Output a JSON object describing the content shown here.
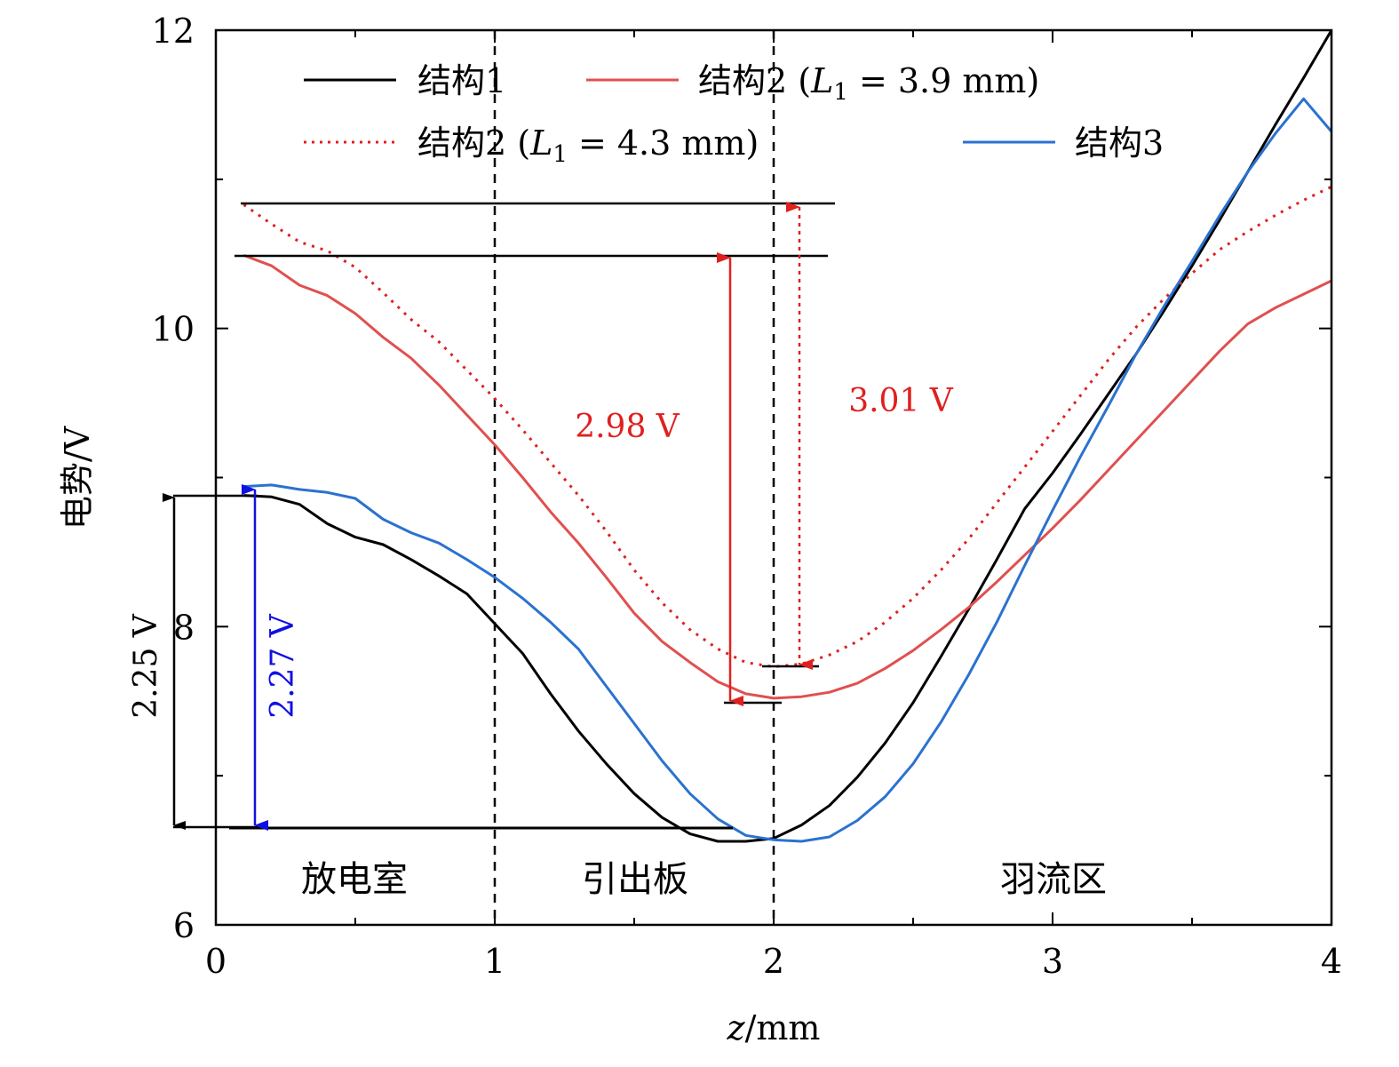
{
  "chart_data": {
    "type": "line",
    "xlabel": "z/mm",
    "ylabel": "电势/V",
    "xlim": [
      0,
      4
    ],
    "ylim": [
      6,
      12
    ],
    "xticks": [
      "0",
      "1",
      "2",
      "3",
      "4"
    ],
    "yticks": [
      "6",
      "8",
      "10",
      "12"
    ],
    "legend_position": "top",
    "series": [
      {
        "name": "结构1",
        "color": "#000000",
        "style": "solid",
        "points": [
          [
            0.1,
            8.88
          ],
          [
            0.2,
            8.87
          ],
          [
            0.3,
            8.82
          ],
          [
            0.4,
            8.69
          ],
          [
            0.5,
            8.6
          ],
          [
            0.6,
            8.55
          ],
          [
            0.7,
            8.45
          ],
          [
            0.8,
            8.34
          ],
          [
            0.9,
            8.22
          ],
          [
            1.0,
            8.02
          ],
          [
            1.1,
            7.82
          ],
          [
            1.2,
            7.55
          ],
          [
            1.3,
            7.3
          ],
          [
            1.4,
            7.08
          ],
          [
            1.5,
            6.88
          ],
          [
            1.6,
            6.72
          ],
          [
            1.7,
            6.61
          ],
          [
            1.8,
            6.56
          ],
          [
            1.9,
            6.56
          ],
          [
            2.0,
            6.58
          ],
          [
            2.1,
            6.67
          ],
          [
            2.2,
            6.8
          ],
          [
            2.3,
            6.99
          ],
          [
            2.4,
            7.22
          ],
          [
            2.5,
            7.49
          ],
          [
            2.6,
            7.8
          ],
          [
            2.7,
            8.12
          ],
          [
            2.8,
            8.45
          ],
          [
            2.9,
            8.79
          ],
          [
            3.0,
            9.03
          ],
          [
            3.1,
            9.29
          ],
          [
            3.2,
            9.56
          ],
          [
            3.3,
            9.83
          ],
          [
            3.4,
            10.12
          ],
          [
            3.5,
            10.42
          ],
          [
            3.6,
            10.73
          ],
          [
            3.7,
            11.05
          ],
          [
            3.8,
            11.37
          ],
          [
            3.9,
            11.68
          ],
          [
            4.0,
            12.0
          ]
        ]
      },
      {
        "name": "结构2 (L₁ = 3.9 mm)",
        "color": "#e05050",
        "style": "solid",
        "points": [
          [
            0.1,
            10.49
          ],
          [
            0.2,
            10.42
          ],
          [
            0.3,
            10.29
          ],
          [
            0.4,
            10.22
          ],
          [
            0.5,
            10.1
          ],
          [
            0.6,
            9.94
          ],
          [
            0.7,
            9.8
          ],
          [
            0.8,
            9.62
          ],
          [
            0.9,
            9.42
          ],
          [
            1.0,
            9.22
          ],
          [
            1.1,
            9.0
          ],
          [
            1.2,
            8.77
          ],
          [
            1.3,
            8.56
          ],
          [
            1.4,
            8.33
          ],
          [
            1.5,
            8.09
          ],
          [
            1.6,
            7.9
          ],
          [
            1.7,
            7.76
          ],
          [
            1.8,
            7.63
          ],
          [
            1.9,
            7.55
          ],
          [
            2.0,
            7.52
          ],
          [
            2.1,
            7.53
          ],
          [
            2.2,
            7.56
          ],
          [
            2.3,
            7.62
          ],
          [
            2.4,
            7.72
          ],
          [
            2.5,
            7.84
          ],
          [
            2.6,
            7.98
          ],
          [
            2.7,
            8.13
          ],
          [
            2.8,
            8.3
          ],
          [
            2.9,
            8.48
          ],
          [
            3.0,
            8.66
          ],
          [
            3.1,
            8.85
          ],
          [
            3.2,
            9.05
          ],
          [
            3.3,
            9.25
          ],
          [
            3.4,
            9.45
          ],
          [
            3.5,
            9.65
          ],
          [
            3.6,
            9.85
          ],
          [
            3.7,
            10.03
          ],
          [
            3.8,
            10.14
          ],
          [
            3.9,
            10.23
          ],
          [
            4.0,
            10.32
          ]
        ]
      },
      {
        "name": "结构2 (L₁ = 4.3 mm)",
        "color": "#e02020",
        "style": "dotted",
        "points": [
          [
            0.1,
            10.83
          ],
          [
            0.2,
            10.7
          ],
          [
            0.3,
            10.58
          ],
          [
            0.4,
            10.52
          ],
          [
            0.5,
            10.41
          ],
          [
            0.6,
            10.24
          ],
          [
            0.7,
            10.06
          ],
          [
            0.8,
            9.91
          ],
          [
            0.9,
            9.72
          ],
          [
            1.0,
            9.53
          ],
          [
            1.1,
            9.32
          ],
          [
            1.2,
            9.1
          ],
          [
            1.3,
            8.88
          ],
          [
            1.4,
            8.64
          ],
          [
            1.5,
            8.38
          ],
          [
            1.6,
            8.16
          ],
          [
            1.7,
            7.98
          ],
          [
            1.8,
            7.85
          ],
          [
            1.9,
            7.76
          ],
          [
            2.0,
            7.73
          ],
          [
            2.1,
            7.75
          ],
          [
            2.2,
            7.81
          ],
          [
            2.3,
            7.9
          ],
          [
            2.4,
            8.03
          ],
          [
            2.5,
            8.19
          ],
          [
            2.6,
            8.38
          ],
          [
            2.7,
            8.59
          ],
          [
            2.8,
            8.83
          ],
          [
            2.9,
            9.07
          ],
          [
            3.0,
            9.31
          ],
          [
            3.1,
            9.55
          ],
          [
            3.2,
            9.79
          ],
          [
            3.3,
            10.01
          ],
          [
            3.4,
            10.2
          ],
          [
            3.5,
            10.37
          ],
          [
            3.6,
            10.53
          ],
          [
            3.7,
            10.65
          ],
          [
            3.8,
            10.76
          ],
          [
            3.9,
            10.86
          ],
          [
            4.0,
            10.95
          ]
        ]
      },
      {
        "name": "结构3",
        "color": "#2a72d0",
        "style": "solid",
        "points": [
          [
            0.1,
            8.94
          ],
          [
            0.2,
            8.95
          ],
          [
            0.3,
            8.92
          ],
          [
            0.4,
            8.9
          ],
          [
            0.5,
            8.86
          ],
          [
            0.6,
            8.72
          ],
          [
            0.7,
            8.63
          ],
          [
            0.8,
            8.56
          ],
          [
            0.9,
            8.45
          ],
          [
            1.0,
            8.33
          ],
          [
            1.1,
            8.19
          ],
          [
            1.2,
            8.03
          ],
          [
            1.3,
            7.85
          ],
          [
            1.4,
            7.6
          ],
          [
            1.5,
            7.35
          ],
          [
            1.6,
            7.1
          ],
          [
            1.7,
            6.88
          ],
          [
            1.8,
            6.71
          ],
          [
            1.9,
            6.6
          ],
          [
            2.0,
            6.57
          ],
          [
            2.1,
            6.56
          ],
          [
            2.2,
            6.59
          ],
          [
            2.3,
            6.7
          ],
          [
            2.4,
            6.86
          ],
          [
            2.5,
            7.08
          ],
          [
            2.6,
            7.36
          ],
          [
            2.7,
            7.68
          ],
          [
            2.8,
            8.03
          ],
          [
            2.9,
            8.41
          ],
          [
            3.0,
            8.78
          ],
          [
            3.1,
            9.14
          ],
          [
            3.2,
            9.48
          ],
          [
            3.3,
            9.83
          ],
          [
            3.4,
            10.15
          ],
          [
            3.5,
            10.45
          ],
          [
            3.6,
            10.76
          ],
          [
            3.7,
            11.05
          ],
          [
            3.8,
            11.31
          ],
          [
            3.9,
            11.54
          ],
          [
            4.0,
            11.32
          ]
        ]
      }
    ],
    "annotations": [
      {
        "label": "2.25 V",
        "color": "#000000"
      },
      {
        "label": "2.27 V",
        "color": "#1010e0"
      },
      {
        "label": "2.98 V",
        "color": "#e02020"
      },
      {
        "label": "3.01 V",
        "color": "#e02020"
      }
    ],
    "regions": [
      "放电室",
      "引出板",
      "羽流区"
    ]
  },
  "legend": {
    "s1": "结构1",
    "s2_prefix": "结构2 (",
    "s2_var": "L",
    "s2_sub": "1",
    "s2_val_a": " = 3.9 mm)",
    "s2_val_b": " = 4.3 mm)",
    "s3": "结构3"
  }
}
